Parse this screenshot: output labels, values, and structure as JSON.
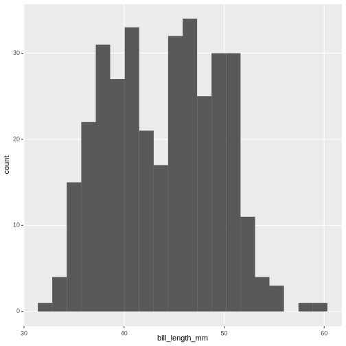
{
  "chart_data": {
    "type": "histogram",
    "x_label": "bill_length_mm",
    "y_label": "count",
    "bins": [
      31.38,
      32.82,
      34.27,
      35.72,
      37.17,
      38.61,
      40.06,
      41.51,
      42.96,
      44.4,
      45.85,
      47.3,
      48.74,
      50.19,
      51.64,
      53.09,
      54.53,
      55.98,
      57.43,
      58.88,
      60.32
    ],
    "counts": [
      1,
      4,
      15,
      22,
      31,
      27,
      33,
      21,
      17,
      32,
      34,
      25,
      30,
      30,
      11,
      4,
      3,
      0,
      1,
      1
    ],
    "color": "#595959",
    "xlim": [
      29.93,
      61.77
    ],
    "xticks": [
      30,
      40,
      50,
      60
    ],
    "ylim": [
      -1.7,
      35.7
    ],
    "yticks": [
      0,
      10,
      20,
      30
    ],
    "grid": true
  }
}
